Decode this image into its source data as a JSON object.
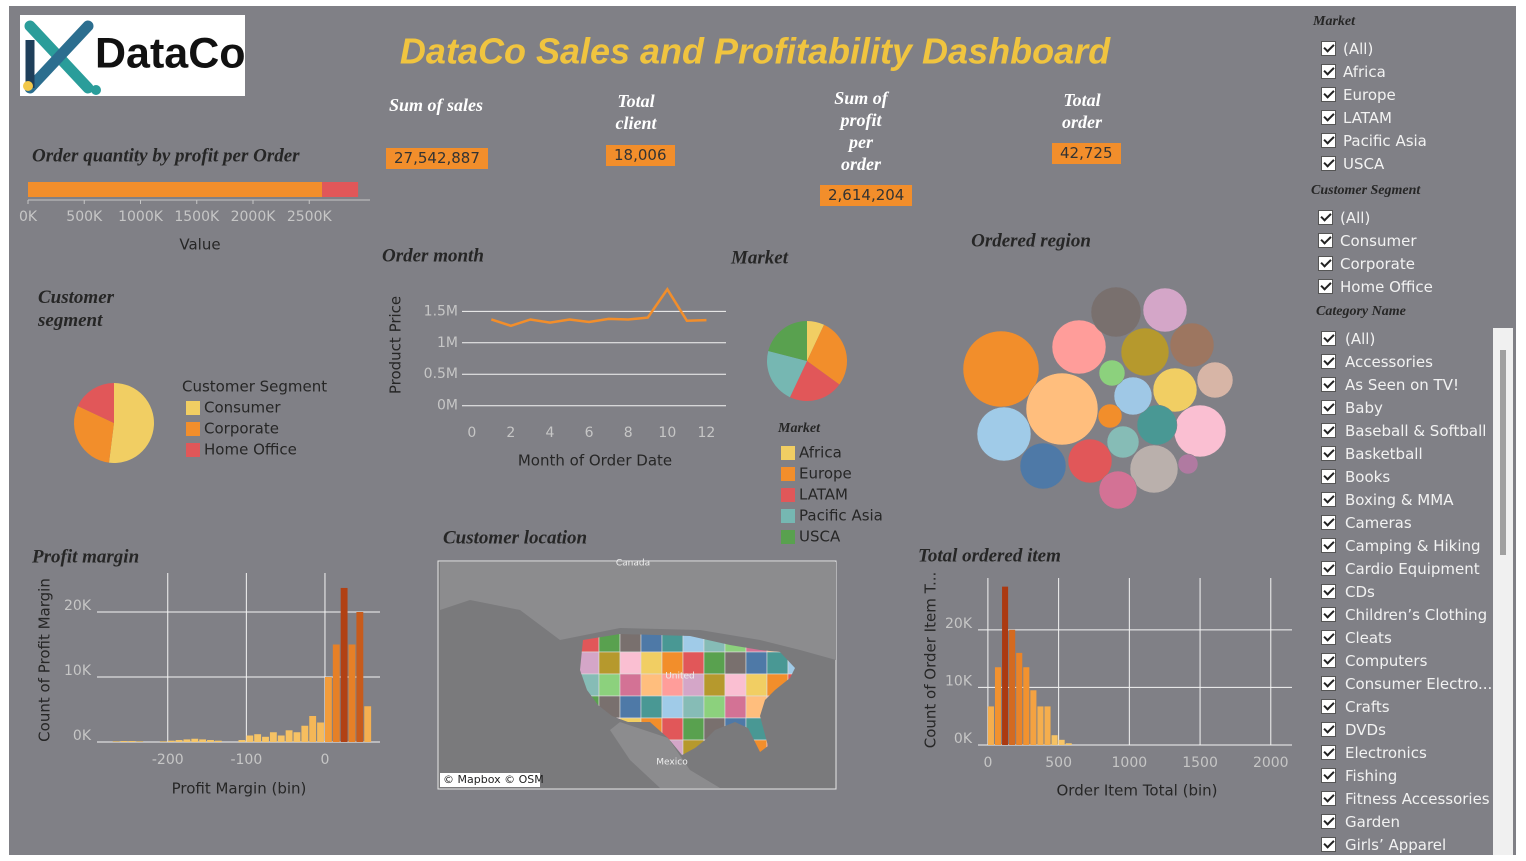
{
  "logo": "DataCo",
  "title": "DataCo Sales and Profitability Dashboard",
  "kpis": [
    {
      "label": "Sum of sales",
      "value": "27,542,887"
    },
    {
      "label": "Total client",
      "value": "18,006"
    },
    {
      "label": "Sum of profit per order",
      "value": "2,614,204"
    },
    {
      "label": "Total order",
      "value": "42,725"
    }
  ],
  "chart_data": [
    {
      "type": "bar",
      "orientation": "horizontal",
      "title": "Order quantity by profit per Order",
      "series": [
        {
          "color": "#f28e2b",
          "values": [
            2614204
          ]
        },
        {
          "color": "#e15759",
          "values": [
            320000
          ]
        }
      ],
      "xlim": [
        0,
        3040000
      ],
      "xticks": [
        {
          "value": 0,
          "label": "0K"
        },
        {
          "value": 500000,
          "label": "500K"
        },
        {
          "value": 1000000,
          "label": "1000K"
        },
        {
          "value": 1500000,
          "label": "1500K"
        },
        {
          "value": 2000000,
          "label": "2000K"
        },
        {
          "value": 2500000,
          "label": "2500K"
        }
      ],
      "xlabel": "Value"
    },
    {
      "type": "pie",
      "title": "Customer segment",
      "legend_title": "Customer Segment",
      "categories": [
        "Consumer",
        "Corporate",
        "Home Office"
      ],
      "values": [
        52,
        30,
        18
      ],
      "colors": [
        "#f1ce63",
        "#f28e2b",
        "#e15759"
      ]
    },
    {
      "type": "line",
      "title": "Order month",
      "x": [
        1,
        2,
        3,
        4,
        5,
        6,
        7,
        8,
        9,
        10,
        11,
        12
      ],
      "values": [
        1370000,
        1270000,
        1370000,
        1320000,
        1370000,
        1330000,
        1380000,
        1370000,
        1400000,
        1850000,
        1350000,
        1360000
      ],
      "color": "#f28e2b",
      "xlim": [
        -0.5,
        13
      ],
      "xticks": [
        0,
        2,
        4,
        6,
        8,
        10,
        12
      ],
      "ylim": [
        -100000,
        1950000
      ],
      "yticks": [
        {
          "value": 0,
          "label": "0M"
        },
        {
          "value": 500000,
          "label": "0.5M"
        },
        {
          "value": 1000000,
          "label": "1M"
        },
        {
          "value": 1500000,
          "label": "1.5M"
        }
      ],
      "xlabel": "Month of Order Date",
      "ylabel": "Product Price",
      "grid": true
    },
    {
      "type": "pie",
      "title": "Market",
      "legend_title": "Market",
      "categories": [
        "Africa",
        "Europe",
        "LATAM",
        "Pacific Asia",
        "USCA"
      ],
      "values": [
        7,
        28,
        22,
        22,
        21
      ],
      "colors": [
        "#f1ce63",
        "#f28e2b",
        "#e15759",
        "#76b7b2",
        "#59a14f"
      ]
    },
    {
      "type": "bubble",
      "title": "Ordered region",
      "values": [
        1444,
        1296,
        729,
        729,
        676,
        625,
        576,
        529,
        576,
        484,
        484,
        484,
        484,
        400,
        361,
        361,
        324,
        256,
        169,
        144,
        100
      ],
      "colors": [
        "#f28e2b",
        "#ffbe7d",
        "#a0cbe8",
        "#ff9d9a",
        "#fabfd2",
        "#79706e",
        "#bab0ac",
        "#4e79a7",
        "#b6992d",
        "#f1ce63",
        "#d4a6c8",
        "#9d7660",
        "#e15759",
        "#499894",
        "#9fc8e6",
        "#d37295",
        "#d7b5a6",
        "#86bcb6",
        "#8cd17d",
        "#f28e2b",
        "#b07aa1"
      ]
    },
    {
      "type": "map",
      "title": "Customer location",
      "labels": [
        "Canada",
        "United",
        "Mexico"
      ],
      "attribution": "© Mapbox © OSM"
    },
    {
      "type": "histogram",
      "title": "Profit margin",
      "bins": [
        -280,
        -270,
        -260,
        -250,
        -240,
        -230,
        -220,
        -210,
        -200,
        -190,
        -180,
        -170,
        -160,
        -150,
        -140,
        -130,
        -120,
        -110,
        -100,
        -90,
        -80,
        -70,
        -60,
        -50,
        -40,
        -30,
        -20,
        -10,
        0,
        10,
        20,
        30,
        40,
        50,
        60
      ],
      "counts": [
        0,
        100,
        150,
        150,
        100,
        0,
        0,
        100,
        200,
        300,
        400,
        500,
        400,
        300,
        200,
        0,
        0,
        300,
        1000,
        1200,
        800,
        1500,
        1000,
        1800,
        1500,
        2500,
        4000,
        3000,
        10000,
        15000,
        23700,
        15000,
        20000,
        5500
      ],
      "color_range": [
        "#f7c96b",
        "#f28e2b",
        "#a3300f"
      ],
      "xlim": [
        -290,
        70
      ],
      "xticks": [
        -200,
        -100,
        0
      ],
      "ylim": [
        0,
        26000
      ],
      "yticks": [
        {
          "value": 0,
          "label": "0K"
        },
        {
          "value": 10000,
          "label": "10K"
        },
        {
          "value": 20000,
          "label": "20K"
        }
      ],
      "xlabel": "Profit Margin (bin)",
      "ylabel": "Count of Profit Margin",
      "grid": true
    },
    {
      "type": "histogram",
      "title": "Total ordered item",
      "bins": [
        0,
        50,
        100,
        150,
        200,
        250,
        300,
        350,
        400,
        450,
        500,
        550,
        600
      ],
      "counts": [
        6700,
        13500,
        27500,
        20000,
        16000,
        13500,
        9500,
        6700,
        6700,
        1700,
        900,
        300
      ],
      "color_range": [
        "#f7c96b",
        "#f28e2b",
        "#a3300f"
      ],
      "xlim": [
        -70,
        2150
      ],
      "xticks": [
        0,
        500,
        1000,
        1500,
        2000
      ],
      "ylim": [
        0,
        29000
      ],
      "yticks": [
        {
          "value": 0,
          "label": "0K"
        },
        {
          "value": 10000,
          "label": "10K"
        },
        {
          "value": 20000,
          "label": "20K"
        }
      ],
      "xlabel": "Order Item Total (bin)",
      "ylabel": "Count of Order Item T...",
      "grid": true
    }
  ],
  "filters": [
    {
      "title": "Market",
      "items": [
        "(All)",
        "Africa",
        "Europe",
        "LATAM",
        "Pacific Asia",
        "USCA"
      ]
    },
    {
      "title": "Customer Segment",
      "items": [
        "(All)",
        "Consumer",
        "Corporate",
        "Home Office"
      ]
    },
    {
      "title": "Category Name",
      "items": [
        "(All)",
        "Accessories",
        "As Seen on  TV!",
        "Baby",
        "Baseball & Softball",
        "Basketball",
        "Books",
        "Boxing & MMA",
        "Cameras",
        "Camping & Hiking",
        "Cardio Equipment",
        "CDs",
        "Children’s Clothing",
        "Cleats",
        "Computers",
        "Consumer Electro...",
        "Crafts",
        "DVDs",
        "Electronics",
        "Fishing",
        "Fitness Accessories",
        "Garden",
        "Girls’ Apparel"
      ]
    }
  ]
}
